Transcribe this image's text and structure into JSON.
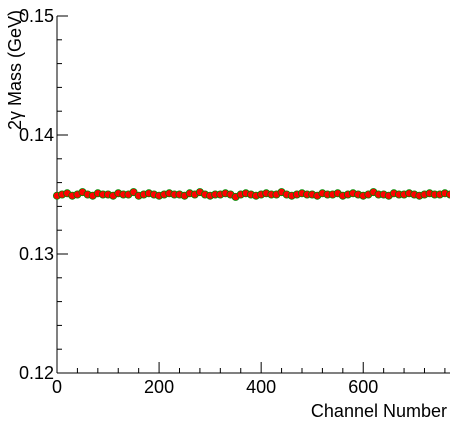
{
  "chart_data": {
    "type": "scatter",
    "title": "",
    "xlabel": "Channel Number",
    "ylabel": "2γ Mass (GeV)",
    "xlim": [
      0,
      770
    ],
    "ylim": [
      0.12,
      0.15
    ],
    "x_ticks": [
      0,
      200,
      400,
      600
    ],
    "x_tick_labels": [
      "0",
      "200",
      "400",
      "600"
    ],
    "y_ticks": [
      0.12,
      0.13,
      0.14,
      0.15
    ],
    "y_tick_labels": [
      "0.12",
      "0.13",
      "0.14",
      "0.15"
    ],
    "grid": false,
    "colors": {
      "points": "#ff0000",
      "points_edge": "#008800",
      "axis": "#000000"
    },
    "series": [
      {
        "x_start": 0,
        "x_step": 10,
        "values": [
          0.1349,
          0.135,
          0.1351,
          0.1349,
          0.135,
          0.1352,
          0.135,
          0.1349,
          0.1351,
          0.135,
          0.135,
          0.1349,
          0.1351,
          0.135,
          0.135,
          0.1352,
          0.1349,
          0.135,
          0.1351,
          0.135,
          0.1349,
          0.135,
          0.1351,
          0.135,
          0.135,
          0.1349,
          0.1351,
          0.135,
          0.1352,
          0.135,
          0.1349,
          0.135,
          0.135,
          0.1351,
          0.135,
          0.1348,
          0.135,
          0.1351,
          0.135,
          0.1349,
          0.135,
          0.1351,
          0.135,
          0.135,
          0.1352,
          0.135,
          0.1349,
          0.135,
          0.1351,
          0.135,
          0.135,
          0.1349,
          0.1351,
          0.135,
          0.135,
          0.1351,
          0.1349,
          0.135,
          0.1351,
          0.135,
          0.1349,
          0.135,
          0.1352,
          0.135,
          0.135,
          0.1349,
          0.1351,
          0.135,
          0.135,
          0.1351,
          0.135,
          0.1349,
          0.135,
          0.1351,
          0.135,
          0.135,
          0.1351,
          0.135
        ]
      }
    ]
  }
}
